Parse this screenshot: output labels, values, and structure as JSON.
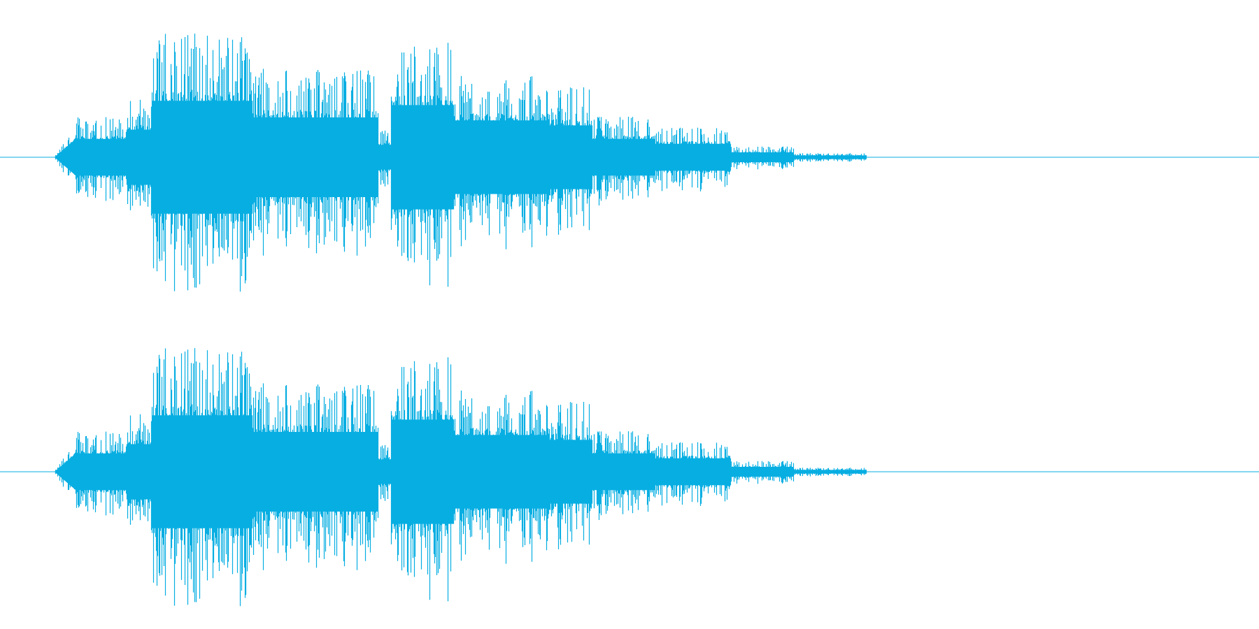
{
  "waveform": {
    "color": "#07aee2",
    "channels": [
      {
        "name": "channel-1"
      },
      {
        "name": "channel-2"
      }
    ],
    "envelope": {
      "duration_fraction_active": [
        0.043,
        0.688
      ],
      "segments": [
        {
          "start": 0.043,
          "end": 0.1,
          "amp": 0.3
        },
        {
          "start": 0.1,
          "end": 0.12,
          "amp": 0.45
        },
        {
          "start": 0.12,
          "end": 0.2,
          "amp": 0.92
        },
        {
          "start": 0.2,
          "end": 0.3,
          "amp": 0.65
        },
        {
          "start": 0.3,
          "end": 0.31,
          "amp": 0.2
        },
        {
          "start": 0.31,
          "end": 0.36,
          "amp": 0.85
        },
        {
          "start": 0.36,
          "end": 0.435,
          "amp": 0.6
        },
        {
          "start": 0.435,
          "end": 0.47,
          "amp": 0.52
        },
        {
          "start": 0.47,
          "end": 0.52,
          "amp": 0.3
        },
        {
          "start": 0.52,
          "end": 0.58,
          "amp": 0.22
        },
        {
          "start": 0.58,
          "end": 0.63,
          "amp": 0.08
        },
        {
          "start": 0.63,
          "end": 0.688,
          "amp": 0.03
        }
      ]
    }
  }
}
